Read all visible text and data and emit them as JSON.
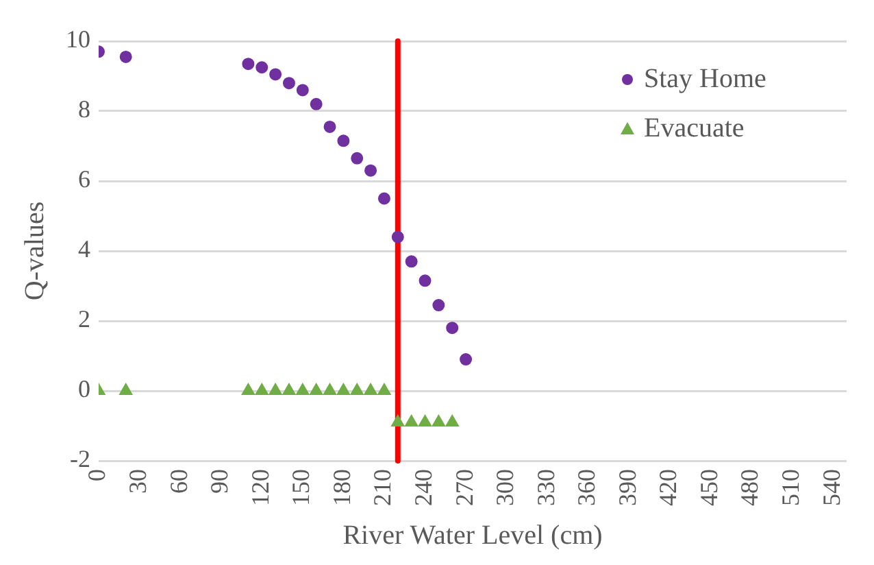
{
  "chart_data": {
    "type": "scatter",
    "xlabel": "River Water Level (cm)",
    "ylabel": "Q-values",
    "x": [
      0,
      20,
      110,
      120,
      130,
      140,
      150,
      160,
      170,
      180,
      190,
      200,
      210,
      220,
      230,
      240,
      250,
      260,
      270
    ],
    "series": [
      {
        "name": "Stay Home",
        "color": "#7030a0",
        "marker": "circle",
        "values": [
          9.7,
          9.55,
          9.35,
          9.25,
          9.05,
          8.8,
          8.6,
          8.2,
          7.55,
          7.15,
          6.65,
          6.3,
          5.5,
          4.4,
          3.7,
          3.15,
          2.45,
          1.8,
          0.9
        ]
      },
      {
        "name": "Evacuate",
        "color": "#70ad47",
        "marker": "triangle",
        "values": [
          0,
          0,
          0,
          0,
          0,
          0,
          0,
          0,
          0,
          0,
          0,
          0,
          0,
          -0.9,
          -0.9,
          -0.9,
          -0.9,
          -0.9,
          null
        ]
      }
    ],
    "xlim": [
      0,
      550
    ],
    "xticks": [
      0,
      30,
      60,
      90,
      120,
      150,
      180,
      210,
      240,
      270,
      300,
      330,
      360,
      390,
      420,
      450,
      480,
      510,
      540
    ],
    "ylim": [
      -2,
      10
    ],
    "yticks": [
      -2,
      0,
      2,
      4,
      6,
      8,
      10
    ],
    "ref_lines": [
      {
        "axis": "x",
        "value": 220,
        "color": "#ff0000",
        "line_style": "solid"
      }
    ],
    "grid": "y",
    "legend": "top right"
  }
}
